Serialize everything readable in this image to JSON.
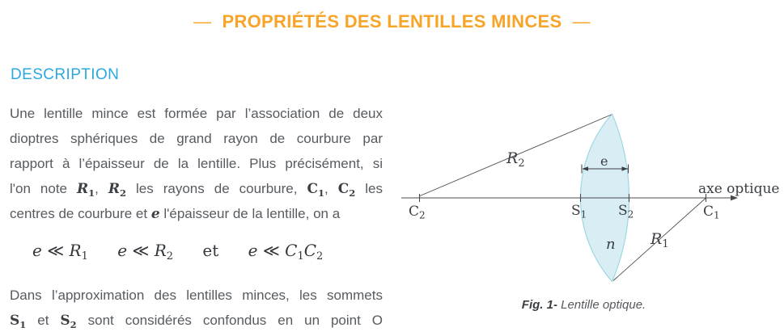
{
  "header": {
    "dash": "—",
    "title": "PROPRIÉTÉS DES LENTILLES MINCES",
    "color": "#F7A428"
  },
  "section": {
    "heading": "DESCRIPTION",
    "color": "#2AA9E0"
  },
  "paragraph1": {
    "lines": [
      [
        {
          "t": "Une lentille mince est formée par l’association de deux",
          "c": "p"
        }
      ],
      [
        {
          "t": "dioptres sphériques de grand rayon de courbure par",
          "c": "p"
        }
      ],
      [
        {
          "t": "rapport à l’épaisseur de la lentille. Plus précisément, si",
          "c": "p"
        }
      ],
      [
        {
          "t": "l'on note ",
          "c": "p"
        },
        {
          "t": "R",
          "c": "mi"
        },
        {
          "t": "1",
          "c": "msub"
        },
        {
          "t": ", ",
          "c": "p"
        },
        {
          "t": "R",
          "c": "mi"
        },
        {
          "t": "2",
          "c": "msub"
        },
        {
          "t": " les rayons de courbure, ",
          "c": "p"
        },
        {
          "t": "C",
          "c": "mu"
        },
        {
          "t": "1",
          "c": "msub"
        },
        {
          "t": ", ",
          "c": "p"
        },
        {
          "t": "C",
          "c": "mu"
        },
        {
          "t": "2",
          "c": "msub"
        },
        {
          "t": " les",
          "c": "p"
        }
      ],
      [
        {
          "t": "centres de courbure et ",
          "c": "p"
        },
        {
          "t": "e",
          "c": "mi"
        },
        {
          "t": " l'épaisseur de la lentille, on a",
          "c": "p"
        }
      ]
    ]
  },
  "equation": {
    "g1": [
      {
        "t": "e",
        "c": "i"
      },
      {
        "t": " ≪ ",
        "c": "rel"
      },
      {
        "t": "R",
        "c": "i"
      },
      {
        "t": "1",
        "c": "esub"
      }
    ],
    "g2": [
      {
        "t": "e",
        "c": "i"
      },
      {
        "t": " ≪ ",
        "c": "rel"
      },
      {
        "t": "R",
        "c": "i"
      },
      {
        "t": "2",
        "c": "esub"
      }
    ],
    "g3": [
      {
        "t": "et",
        "c": "up"
      }
    ],
    "g4": [
      {
        "t": "e",
        "c": "i"
      },
      {
        "t": " ≪ ",
        "c": "rel"
      },
      {
        "t": "C",
        "c": "i"
      },
      {
        "t": "1",
        "c": "esub"
      },
      {
        "t": "C",
        "c": "i"
      },
      {
        "t": "2",
        "c": "esub"
      }
    ]
  },
  "paragraph2": {
    "lines": [
      [
        {
          "t": "Dans l’approximation des lentilles minces, les sommets",
          "c": "p"
        }
      ],
      [
        {
          "t": "S",
          "c": "mu"
        },
        {
          "t": "1",
          "c": "msub"
        },
        {
          "t": " et ",
          "c": "p"
        },
        {
          "t": "S",
          "c": "mu"
        },
        {
          "t": "2",
          "c": "msub"
        },
        {
          "t": " sont considérés confondus en un point O",
          "c": "p"
        }
      ]
    ]
  },
  "diagram": {
    "axis_label": "axe optique",
    "points": {
      "c2": {
        "b": "C",
        "s": "2"
      },
      "s1": {
        "b": "S",
        "s": "1"
      },
      "s2": {
        "b": "S",
        "s": "2"
      },
      "c1": {
        "b": "C",
        "s": "1"
      }
    },
    "radii": {
      "r2": {
        "b": "R",
        "s": "2"
      },
      "r1": {
        "b": "R",
        "s": "1"
      }
    },
    "thickness_label": "e",
    "index_label": "n",
    "colors": {
      "lens_fill": "#D9EEF4",
      "lens_stroke": "#9ED6E4",
      "line": "#4B4B4B",
      "text": "#3A3E42"
    }
  },
  "figure": {
    "caption_label": "Fig. 1-",
    "caption_text": "Lentille optique."
  }
}
